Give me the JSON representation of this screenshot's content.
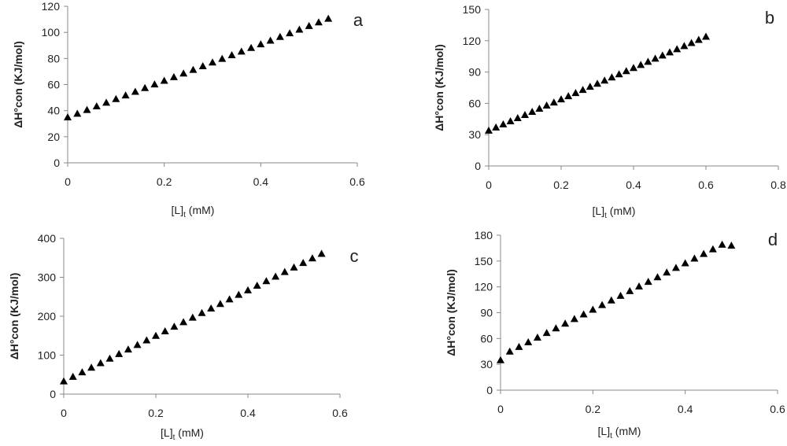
{
  "chart_data": [
    {
      "type": "scatter",
      "panel_label": "a",
      "xlabel": "[L]t (mM)",
      "ylabel": "ΔH°con (KJ/mol)",
      "xlim": [
        0,
        0.6
      ],
      "ylim": [
        0,
        120
      ],
      "xticks": [
        "0",
        "0.2",
        "0.4",
        "0.6"
      ],
      "yticks": [
        "0",
        "20",
        "40",
        "60",
        "80",
        "100",
        "120"
      ],
      "marker": "triangle",
      "color": "#000000",
      "x": [
        0,
        0.02,
        0.04,
        0.06,
        0.08,
        0.1,
        0.12,
        0.14,
        0.16,
        0.18,
        0.2,
        0.22,
        0.24,
        0.26,
        0.28,
        0.3,
        0.32,
        0.34,
        0.36,
        0.38,
        0.4,
        0.42,
        0.44,
        0.46,
        0.48,
        0.5,
        0.52,
        0.54
      ],
      "y": [
        35,
        37.8,
        40.6,
        43.4,
        46.2,
        49,
        51.8,
        54.6,
        57.4,
        60.2,
        63,
        65.8,
        68.6,
        71.4,
        74.2,
        77,
        79.8,
        82.6,
        85.4,
        88.2,
        91,
        93.8,
        96.6,
        99.4,
        102.2,
        105,
        107.8,
        110.6
      ]
    },
    {
      "type": "scatter",
      "panel_label": "b",
      "xlabel": "[L]t (mM)",
      "ylabel": "ΔH°con (KJ/mol)",
      "xlim": [
        0,
        0.8
      ],
      "ylim": [
        0,
        150
      ],
      "xticks": [
        "0",
        "0.2",
        "0.4",
        "0.6",
        "0.8"
      ],
      "yticks": [
        "0",
        "30",
        "60",
        "90",
        "120",
        "150"
      ],
      "marker": "triangle",
      "color": "#000000",
      "x": [
        0,
        0.02,
        0.04,
        0.06,
        0.08,
        0.1,
        0.12,
        0.14,
        0.16,
        0.18,
        0.2,
        0.22,
        0.24,
        0.26,
        0.28,
        0.3,
        0.32,
        0.34,
        0.36,
        0.38,
        0.4,
        0.42,
        0.44,
        0.46,
        0.48,
        0.5,
        0.52,
        0.54,
        0.56,
        0.58,
        0.6
      ],
      "y": [
        34,
        37,
        40,
        43,
        46,
        49,
        52,
        55,
        58,
        61,
        64,
        67,
        70,
        73,
        76,
        79,
        82,
        85,
        88,
        91,
        94,
        97,
        100,
        103,
        106,
        109,
        112,
        115,
        118,
        121,
        124
      ]
    },
    {
      "type": "scatter",
      "panel_label": "c",
      "xlabel": "[L]t (mM)",
      "ylabel": "ΔH°con (KJ/mol)",
      "xlim": [
        0,
        0.6
      ],
      "ylim": [
        0,
        400
      ],
      "xticks": [
        "0",
        "0.2",
        "0.4",
        "0.6"
      ],
      "yticks": [
        "0",
        "100",
        "200",
        "300",
        "400"
      ],
      "marker": "triangle",
      "color": "#000000",
      "x": [
        0,
        0.02,
        0.04,
        0.06,
        0.08,
        0.1,
        0.12,
        0.14,
        0.16,
        0.18,
        0.2,
        0.22,
        0.24,
        0.26,
        0.28,
        0.3,
        0.32,
        0.34,
        0.36,
        0.38,
        0.4,
        0.42,
        0.44,
        0.46,
        0.48,
        0.5,
        0.52,
        0.54,
        0.56
      ],
      "y": [
        33,
        44.7,
        56.4,
        68.1,
        79.8,
        91.5,
        103.2,
        114.9,
        126.6,
        138.3,
        150,
        161.7,
        173.4,
        185.1,
        196.8,
        208.5,
        220.2,
        231.9,
        243.6,
        255.3,
        267,
        278.7,
        290.4,
        302.1,
        313.8,
        325.5,
        337.2,
        348.9,
        360.6
      ]
    },
    {
      "type": "scatter",
      "panel_label": "d",
      "xlabel": "[L]t (mM)",
      "ylabel": "ΔH°con (KJ/mol)",
      "xlim": [
        0,
        0.6
      ],
      "ylim": [
        0,
        180
      ],
      "xticks": [
        "0",
        "0.2",
        "0.4",
        "0.6"
      ],
      "yticks": [
        "0",
        "30",
        "60",
        "90",
        "120",
        "150",
        "180"
      ],
      "marker": "triangle",
      "color": "#000000",
      "x": [
        0,
        0.02,
        0.04,
        0.06,
        0.08,
        0.1,
        0.12,
        0.14,
        0.16,
        0.18,
        0.2,
        0.22,
        0.24,
        0.26,
        0.28,
        0.3,
        0.32,
        0.34,
        0.36,
        0.38,
        0.4,
        0.42,
        0.44,
        0.46,
        0.48,
        0.5
      ],
      "y": [
        35,
        45,
        50.4,
        55.8,
        61.2,
        66.6,
        72,
        77.4,
        82.8,
        88.2,
        93.6,
        99,
        104.4,
        109.8,
        115.2,
        120.6,
        126,
        131.4,
        136.8,
        142.2,
        147.6,
        153,
        158.4,
        163.8,
        169.2,
        168
      ]
    }
  ]
}
